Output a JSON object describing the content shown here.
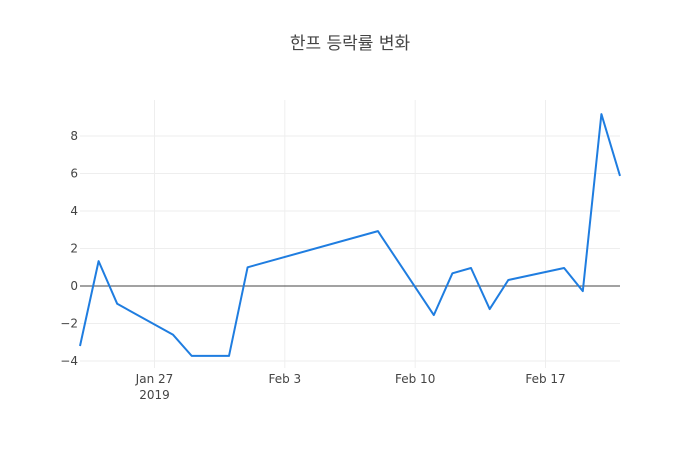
{
  "chart_data": {
    "type": "line",
    "title": "한프 등락률 변화",
    "xlabel": "",
    "ylabel": "",
    "x": [
      "2019-01-23",
      "2019-01-24",
      "2019-01-25",
      "2019-01-28",
      "2019-01-29",
      "2019-01-30",
      "2019-01-31",
      "2019-02-01",
      "2019-02-08",
      "2019-02-11",
      "2019-02-12",
      "2019-02-13",
      "2019-02-14",
      "2019-02-15",
      "2019-02-18",
      "2019-02-19",
      "2019-02-20",
      "2019-02-21"
    ],
    "series": [
      {
        "name": "등락률",
        "color": "#1f7de0",
        "values": [
          -3.2,
          1.33,
          -0.95,
          -2.6,
          -3.73,
          -3.73,
          -3.73,
          1.0,
          2.93,
          -1.55,
          0.68,
          0.96,
          -1.23,
          0.32,
          0.96,
          -0.27,
          9.17,
          5.87
        ]
      }
    ],
    "ylim": [
      -4.4,
      10
    ],
    "yticks": [
      -4,
      -2,
      0,
      2,
      4,
      6,
      8
    ],
    "ytick_labels": [
      "−4",
      "−2",
      "0",
      "2",
      "4",
      "6",
      "8"
    ],
    "xticks": [
      {
        "date": "2019-01-27",
        "label": "Jan 27",
        "sublabel": "2019"
      },
      {
        "date": "2019-02-03",
        "label": "Feb 3",
        "sublabel": ""
      },
      {
        "date": "2019-02-10",
        "label": "Feb 10",
        "sublabel": ""
      },
      {
        "date": "2019-02-17",
        "label": "Feb 17",
        "sublabel": ""
      }
    ],
    "grid": true,
    "zeroline": true,
    "legend": "none"
  }
}
